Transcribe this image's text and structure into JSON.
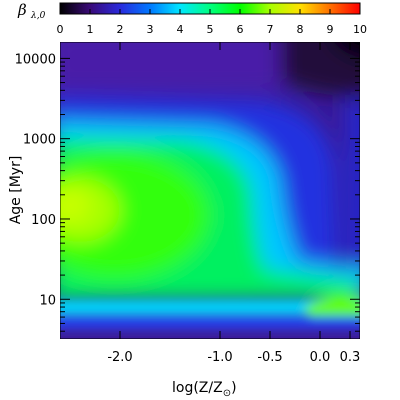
{
  "chart_data": {
    "type": "heatmap",
    "title": "",
    "xlabel_main": "log(Z/Z",
    "xlabel_sub": "⊙",
    "xlabel_close": ")",
    "ylabel": "Age [Myr]",
    "x_range": [
      -2.6,
      0.4
    ],
    "y_range_myr": [
      3.2,
      16000
    ],
    "y_scale": "log",
    "x_ticks": [
      {
        "value": -2.0,
        "label": "-2.0"
      },
      {
        "value": -1.0,
        "label": "-1.0"
      },
      {
        "value": -0.5,
        "label": "-0.5"
      },
      {
        "value": 0.0,
        "label": "0.0"
      },
      {
        "value": 0.3,
        "label": "0.3"
      }
    ],
    "y_ticks": [
      {
        "value": 10,
        "label": "10"
      },
      {
        "value": 100,
        "label": "100"
      },
      {
        "value": 1000,
        "label": "1000"
      },
      {
        "value": 10000,
        "label": "10000"
      }
    ],
    "colorbar": {
      "title": "β",
      "title_sub": "λ,0",
      "range": [
        0,
        10
      ],
      "ticks": [
        "0",
        "1",
        "2",
        "3",
        "4",
        "5",
        "6",
        "7",
        "8",
        "9",
        "10"
      ],
      "colormap": "rainbow (black-purple-blue-cyan-green-yellow-red)"
    }
  }
}
